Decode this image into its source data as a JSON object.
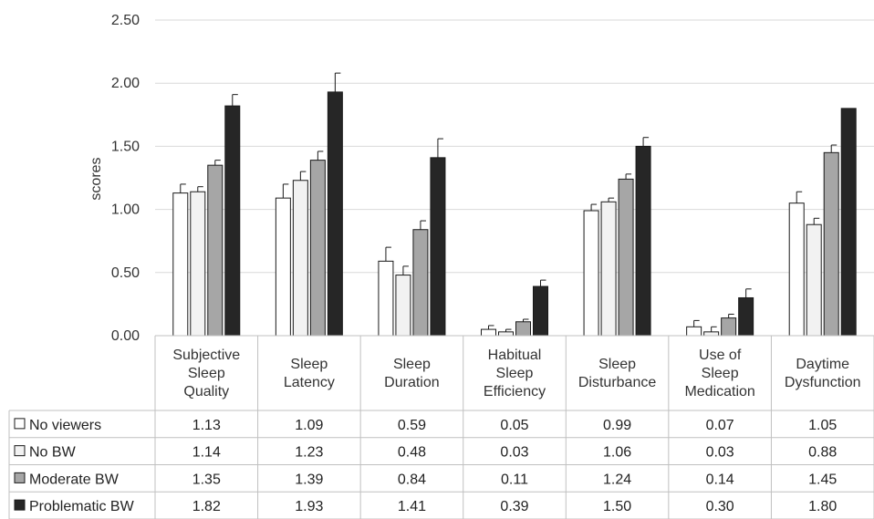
{
  "chart_data": {
    "type": "bar",
    "ylabel": "scores",
    "ylim": [
      0,
      2.5
    ],
    "yticks": [
      "0.00",
      "0.50",
      "1.00",
      "1.50",
      "2.00",
      "2.50"
    ],
    "grid": true,
    "legend_placement": "data-table-left",
    "categories": [
      [
        "Subjective",
        "Sleep",
        "Quality"
      ],
      [
        "Sleep",
        "Latency"
      ],
      [
        "Sleep",
        "Duration"
      ],
      [
        "Habitual",
        "Sleep",
        "Efficiency"
      ],
      [
        "Sleep",
        "Disturbance"
      ],
      [
        "Use of",
        "Sleep",
        "Medication"
      ],
      [
        "Daytime",
        "Dysfunction"
      ]
    ],
    "series": [
      {
        "name": "No viewers",
        "color": "#ffffff",
        "values": [
          1.13,
          1.09,
          0.59,
          0.05,
          0.99,
          0.07,
          1.05
        ],
        "value_labels": [
          "1.13",
          "1.09",
          "0.59",
          "0.05",
          "0.99",
          "0.07",
          "1.05"
        ],
        "errors": [
          0.07,
          0.11,
          0.11,
          0.03,
          0.05,
          0.05,
          0.09
        ]
      },
      {
        "name": "No BW",
        "color": "#f2f2f2",
        "values": [
          1.14,
          1.23,
          0.48,
          0.03,
          1.06,
          0.03,
          0.88
        ],
        "value_labels": [
          "1.14",
          "1.23",
          "0.48",
          "0.03",
          "1.06",
          "0.03",
          "0.88"
        ],
        "errors": [
          0.04,
          0.07,
          0.07,
          0.02,
          0.03,
          0.04,
          0.05
        ]
      },
      {
        "name": "Moderate BW",
        "color": "#a6a6a6",
        "values": [
          1.35,
          1.39,
          0.84,
          0.11,
          1.24,
          0.14,
          1.45
        ],
        "value_labels": [
          "1.35",
          "1.39",
          "0.84",
          "0.11",
          "1.24",
          "0.14",
          "1.45"
        ],
        "errors": [
          0.04,
          0.07,
          0.07,
          0.02,
          0.04,
          0.03,
          0.06
        ]
      },
      {
        "name": "Problematic BW",
        "color": "#262626",
        "values": [
          1.82,
          1.93,
          1.41,
          0.39,
          1.5,
          0.3,
          1.8
        ],
        "value_labels": [
          "1.82",
          "1.93",
          "1.41",
          "0.39",
          "1.50",
          "0.30",
          "1.80"
        ],
        "errors": [
          0.09,
          0.15,
          0.15,
          0.05,
          0.07,
          0.07,
          0.0
        ]
      }
    ]
  }
}
